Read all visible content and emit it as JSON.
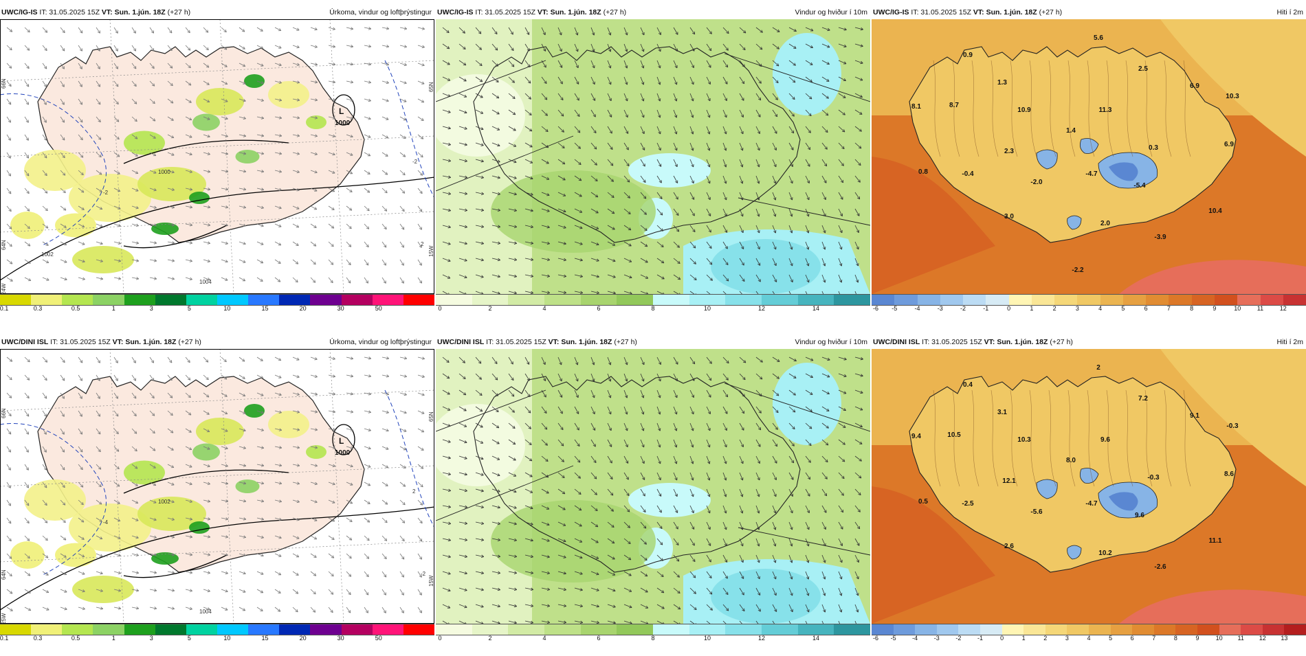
{
  "rows": [
    {
      "model": "UWC/IG-IS",
      "panels": [
        {
          "kind": "precip",
          "init": "IT: 31.05.2025 15Z",
          "vt": "VT: Sun. 1.jún. 18Z",
          "lead": "(+27 h)",
          "title": "Úrkoma, vindur og loftþrýstingur",
          "low_label": "L",
          "low_pressure": "1000",
          "isobar_labels": [
            "1000",
            "1004",
            "1002"
          ],
          "lat_labels": [
            "66N",
            "65N",
            "64N",
            "24W",
            "15W"
          ],
          "temp_contour_labels": [
            "-2",
            "2",
            "-2"
          ],
          "legend_ticks": [
            "0.1",
            "0.3",
            "0.5",
            "1",
            "3",
            "5",
            "10",
            "15",
            "20",
            "30",
            "50"
          ],
          "legend_colors": [
            "#d8d800",
            "#f0f078",
            "#b4e650",
            "#8cd264",
            "#1ea01e",
            "#00782d",
            "#00d2a0",
            "#00c8ff",
            "#2878ff",
            "#0028b4",
            "#6e0090",
            "#b40060",
            "#ff1478",
            "#ff0000"
          ]
        },
        {
          "kind": "wind",
          "init": "IT: 31.05.2025 15Z",
          "vt": "VT: Sun. 1.jún. 18Z",
          "lead": "(+27 h)",
          "title": "Vindur og hviður í 10m",
          "legend_ticks": [
            "0",
            "2",
            "4",
            "6",
            "8",
            "10",
            "12",
            "14"
          ],
          "legend_colors": [
            "#f5fbe0",
            "#e6f5c8",
            "#d2eba5",
            "#bee188",
            "#a8d46e",
            "#92c85a",
            "#c8fafa",
            "#a8f0f5",
            "#87e1ea",
            "#64cdd7",
            "#46b4be",
            "#2d969f"
          ]
        },
        {
          "kind": "temp",
          "init": "IT: 31.05.2025 15Z",
          "vt": "VT: Sun. 1.jún. 18Z",
          "lead": "(+27 h)",
          "title": "Hiti í 2m",
          "values": [
            "5.6",
            "0.9",
            "2.5",
            "1.3",
            "6.9",
            "10.3",
            "8.1",
            "8.7",
            "10.9",
            "11.3",
            "1.4",
            "6.9",
            "0.3",
            "2.3",
            "0.8",
            "-0.4",
            "-4.7",
            "-2.0",
            "-5.4",
            "3.0",
            "2.0",
            "10.4",
            "-3.9",
            "-2.2"
          ],
          "legend_ticks": [
            "-6",
            "-5",
            "-4",
            "-3",
            "-2",
            "-1",
            "0",
            "1",
            "2",
            "3",
            "4",
            "5",
            "6",
            "7",
            "8",
            "9",
            "10",
            "11",
            "12"
          ],
          "legend_colors": [
            "#5a87d2",
            "#6e9bdc",
            "#87b4e6",
            "#a0c8ee",
            "#bcdcf4",
            "#d7ebf5",
            "#fff5b4",
            "#fae696",
            "#f5d778",
            "#f0c864",
            "#ebb450",
            "#e6a041",
            "#e18c32",
            "#dc7828",
            "#d76423",
            "#d2501e",
            "#e66e5a",
            "#dc4b46",
            "#c83232"
          ]
        }
      ]
    },
    {
      "model": "UWC/DINI ISL",
      "panels": [
        {
          "kind": "precip",
          "init": "IT: 31.05.2025 15Z",
          "vt": "VT: Sun. 1.jún. 18Z",
          "lead": "(+27 h)",
          "title": "Úrkoma, vindur og loftþrýstingur",
          "low_label": "L",
          "low_pressure": "1000",
          "isobar_labels": [
            "1002",
            "1004"
          ],
          "lat_labels": [
            "66N",
            "65N",
            "64N",
            "25W",
            "15W"
          ],
          "temp_contour_labels": [
            "-4",
            "-2",
            "2"
          ],
          "legend_ticks": [
            "0.1",
            "0.3",
            "0.5",
            "1",
            "3",
            "5",
            "10",
            "15",
            "20",
            "30",
            "50"
          ],
          "legend_colors": [
            "#d8d800",
            "#f0f078",
            "#b4e650",
            "#8cd264",
            "#1ea01e",
            "#00782d",
            "#00d2a0",
            "#00c8ff",
            "#2878ff",
            "#0028b4",
            "#6e0090",
            "#b40060",
            "#ff1478",
            "#ff0000"
          ]
        },
        {
          "kind": "wind",
          "init": "IT: 31.05.2025 15Z",
          "vt": "VT: Sun. 1.jún. 18Z",
          "lead": "(+27 h)",
          "title": "Vindur og hviður í 10m",
          "legend_ticks": [
            "0",
            "2",
            "4",
            "6",
            "8",
            "10",
            "12",
            "14"
          ],
          "legend_colors": [
            "#f5fbe0",
            "#e6f5c8",
            "#d2eba5",
            "#bee188",
            "#a8d46e",
            "#92c85a",
            "#c8fafa",
            "#a8f0f5",
            "#87e1ea",
            "#64cdd7",
            "#46b4be",
            "#2d969f"
          ]
        },
        {
          "kind": "temp",
          "init": "IT: 31.05.2025 15Z",
          "vt": "VT: Sun. 1.jún. 18Z",
          "lead": "(+27 h)",
          "title": "Hiti í 2m",
          "values": [
            "2",
            "0.4",
            "7.2",
            "3.1",
            "9.1",
            "-0.3",
            "9.4",
            "10.5",
            "10.3",
            "9.6",
            "8.0",
            "8.6",
            "-0.3",
            "12.1",
            "0.5",
            "-2.5",
            "-4.7",
            "-5.6",
            "9.6",
            "2.6",
            "10.2",
            "11.1",
            "-2.6"
          ],
          "legend_ticks": [
            "-6",
            "-5",
            "-4",
            "-3",
            "-2",
            "-1",
            "0",
            "1",
            "2",
            "3",
            "4",
            "5",
            "6",
            "7",
            "8",
            "9",
            "10",
            "11",
            "12",
            "13"
          ],
          "legend_colors": [
            "#5a87d2",
            "#6e9bdc",
            "#87b4e6",
            "#a0c8ee",
            "#bcdcf4",
            "#d7ebf5",
            "#fff5b4",
            "#fae696",
            "#f5d778",
            "#f0c864",
            "#ebb450",
            "#e6a041",
            "#e18c32",
            "#dc7828",
            "#d76423",
            "#d2501e",
            "#e66e5a",
            "#dc4b46",
            "#c83232",
            "#b41e1e"
          ]
        }
      ]
    }
  ]
}
